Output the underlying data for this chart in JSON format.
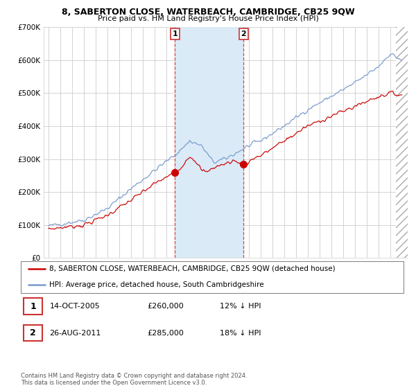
{
  "title": "8, SABERTON CLOSE, WATERBEACH, CAMBRIDGE, CB25 9QW",
  "subtitle": "Price paid vs. HM Land Registry's House Price Index (HPI)",
  "background_color": "#ffffff",
  "plot_bg_color": "#ffffff",
  "grid_color": "#cccccc",
  "red_line_color": "#cc0000",
  "blue_line_color": "#7799cc",
  "highlight_bg": "#daeaf7",
  "sale1_date": "14-OCT-2005",
  "sale1_price": "£260,000",
  "sale1_note": "12% ↓ HPI",
  "sale2_date": "26-AUG-2011",
  "sale2_price": "£285,000",
  "sale2_note": "18% ↓ HPI",
  "legend_red": "8, SABERTON CLOSE, WATERBEACH, CAMBRIDGE, CB25 9QW (detached house)",
  "legend_blue": "HPI: Average price, detached house, South Cambridgeshire",
  "copyright": "Contains HM Land Registry data © Crown copyright and database right 2024.\nThis data is licensed under the Open Government Licence v3.0.",
  "ylim": [
    0,
    700000
  ],
  "yticks": [
    0,
    100000,
    200000,
    300000,
    400000,
    500000,
    600000,
    700000
  ],
  "ytick_labels": [
    "£0",
    "£100K",
    "£200K",
    "£300K",
    "£400K",
    "£500K",
    "£600K",
    "£700K"
  ],
  "sale1_year": 2005.75,
  "sale1_price_val": 260000,
  "sale2_year": 2011.58,
  "sale2_price_val": 285000
}
